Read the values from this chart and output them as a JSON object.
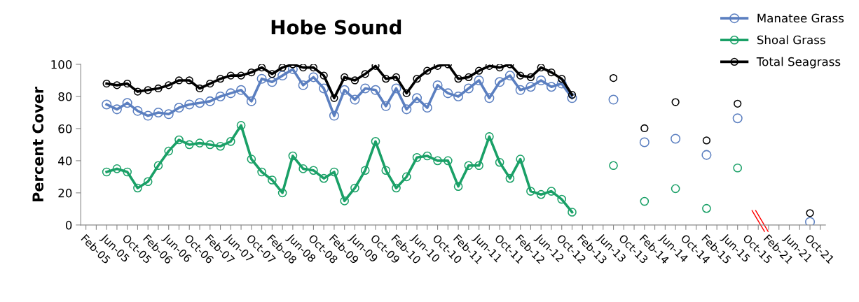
{
  "chart_data": {
    "type": "line",
    "title": "Hobe Sound",
    "ylabel": "Percent Cover",
    "categories": [
      "Feb-05",
      null,
      "Jun-05",
      null,
      "Oct-05",
      null,
      "Feb-06",
      null,
      "Jun-06",
      null,
      "Oct-06",
      null,
      "Feb-07",
      null,
      "Jun-07",
      null,
      "Oct-07",
      null,
      "Feb-08",
      null,
      "Jun-08",
      null,
      "Oct-08",
      null,
      "Feb-09",
      null,
      "Jun-09",
      null,
      "Oct-09",
      null,
      "Feb-10",
      null,
      "Jun-10",
      null,
      "Oct-10",
      null,
      "Feb-11",
      null,
      "Jun-11",
      null,
      "Oct-11",
      null,
      "Feb-12",
      null,
      "Jun-12",
      null,
      "Oct-12",
      null,
      "Feb-13",
      null,
      "Jun-13",
      null,
      "Oct-13",
      null,
      "Feb-14",
      null,
      "Jun-14",
      null,
      "Oct-14",
      null,
      "Feb-15",
      null,
      "Jun-15",
      null,
      "Oct-15",
      null,
      "Feb-21",
      null,
      "Jun-21",
      null,
      "Oct-21",
      null
    ],
    "series": [
      {
        "name": "Manatee Grass",
        "color": "#5b7fc0",
        "values": [
          null,
          null,
          75,
          72,
          76,
          71,
          68,
          70,
          69,
          73,
          75,
          76,
          77,
          80,
          82,
          84,
          77,
          91,
          89,
          93,
          97,
          87,
          92,
          85,
          68,
          84,
          78,
          85,
          84,
          74,
          85,
          72,
          79,
          73,
          87,
          82,
          80,
          85,
          90,
          79,
          89,
          93,
          84,
          86,
          90,
          86,
          88,
          79,
          null,
          null,
          null,
          78,
          null,
          null,
          51.5,
          null,
          null,
          53.7,
          null,
          null,
          43.6,
          null,
          null,
          66.4,
          null,
          null,
          null,
          null,
          null,
          null,
          1.9,
          null
        ]
      },
      {
        "name": "Shoal Grass",
        "color": "#1aa067",
        "values": [
          null,
          null,
          33,
          35,
          33,
          23,
          27,
          37,
          46,
          53,
          50,
          51,
          50,
          49,
          52,
          62,
          41,
          33,
          28,
          20,
          43,
          35,
          34,
          29,
          33,
          15,
          23,
          34,
          52,
          34,
          23,
          30,
          42,
          43,
          40,
          40,
          24,
          37,
          37,
          55,
          39,
          29,
          41,
          21,
          19,
          21,
          16,
          8,
          null,
          null,
          null,
          37,
          null,
          null,
          14.7,
          null,
          null,
          22.6,
          null,
          null,
          10.3,
          null,
          null,
          35.5,
          null,
          null,
          null,
          null,
          null,
          null,
          null,
          null
        ]
      },
      {
        "name": "Total Seagrass",
        "color": "#000000",
        "values": [
          null,
          null,
          88,
          87,
          88,
          83,
          84,
          85,
          87,
          90,
          90,
          85,
          88,
          91,
          93,
          93,
          95,
          98,
          94,
          98,
          100,
          98,
          98,
          93,
          79,
          92,
          90,
          94,
          99,
          91,
          92,
          82,
          91,
          96,
          99,
          100,
          91,
          92,
          96,
          99,
          98,
          100,
          93,
          92,
          98,
          95,
          91,
          81,
          null,
          null,
          null,
          91.5,
          null,
          null,
          60.2,
          null,
          null,
          76.5,
          null,
          null,
          52.6,
          null,
          null,
          75.5,
          null,
          null,
          null,
          null,
          null,
          null,
          7.4,
          null
        ]
      }
    ],
    "ylim": [
      0,
      100
    ],
    "yticks": [
      0,
      20,
      40,
      60,
      80,
      100
    ],
    "grid": false,
    "legend": "top right",
    "marker": "circle",
    "line_style": "solid"
  }
}
